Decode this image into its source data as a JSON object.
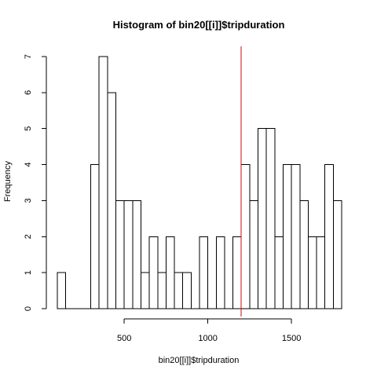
{
  "chart_data": {
    "type": "bar",
    "title": "Histogram of bin20[[i]]$tripduration",
    "xlabel": "bin20[[i]]$tripduration",
    "ylabel": "Frequency",
    "bin_width": 50,
    "bins": [
      {
        "start": 100,
        "end": 150,
        "count": 1
      },
      {
        "start": 150,
        "end": 200,
        "count": 0
      },
      {
        "start": 200,
        "end": 250,
        "count": 0
      },
      {
        "start": 250,
        "end": 300,
        "count": 0
      },
      {
        "start": 300,
        "end": 350,
        "count": 4
      },
      {
        "start": 350,
        "end": 400,
        "count": 7
      },
      {
        "start": 400,
        "end": 450,
        "count": 6
      },
      {
        "start": 450,
        "end": 500,
        "count": 3
      },
      {
        "start": 500,
        "end": 550,
        "count": 3
      },
      {
        "start": 550,
        "end": 600,
        "count": 3
      },
      {
        "start": 600,
        "end": 650,
        "count": 1
      },
      {
        "start": 650,
        "end": 700,
        "count": 2
      },
      {
        "start": 700,
        "end": 750,
        "count": 1
      },
      {
        "start": 750,
        "end": 800,
        "count": 2
      },
      {
        "start": 800,
        "end": 850,
        "count": 1
      },
      {
        "start": 850,
        "end": 900,
        "count": 1
      },
      {
        "start": 900,
        "end": 950,
        "count": 0
      },
      {
        "start": 950,
        "end": 1000,
        "count": 2
      },
      {
        "start": 1000,
        "end": 1050,
        "count": 0
      },
      {
        "start": 1050,
        "end": 1100,
        "count": 2
      },
      {
        "start": 1100,
        "end": 1150,
        "count": 0
      },
      {
        "start": 1150,
        "end": 1200,
        "count": 2
      },
      {
        "start": 1200,
        "end": 1250,
        "count": 4
      },
      {
        "start": 1250,
        "end": 1300,
        "count": 3
      },
      {
        "start": 1300,
        "end": 1350,
        "count": 5
      },
      {
        "start": 1350,
        "end": 1400,
        "count": 5
      },
      {
        "start": 1400,
        "end": 1450,
        "count": 2
      },
      {
        "start": 1450,
        "end": 1500,
        "count": 4
      },
      {
        "start": 1500,
        "end": 1550,
        "count": 4
      },
      {
        "start": 1550,
        "end": 1600,
        "count": 3
      },
      {
        "start": 1600,
        "end": 1650,
        "count": 2
      },
      {
        "start": 1650,
        "end": 1700,
        "count": 2
      },
      {
        "start": 1700,
        "end": 1750,
        "count": 4
      },
      {
        "start": 1750,
        "end": 1800,
        "count": 3
      }
    ],
    "x_ticks": [
      500,
      1000,
      1500
    ],
    "y_ticks": [
      0,
      1,
      2,
      3,
      4,
      5,
      6,
      7
    ],
    "xlim": [
      100,
      1800
    ],
    "ylim": [
      0,
      7
    ],
    "reference_line": {
      "x": 1200,
      "color": "#e00000"
    },
    "grid": false,
    "legend": "none",
    "bar_fill": "#ffffff",
    "bar_stroke": "#000000"
  }
}
